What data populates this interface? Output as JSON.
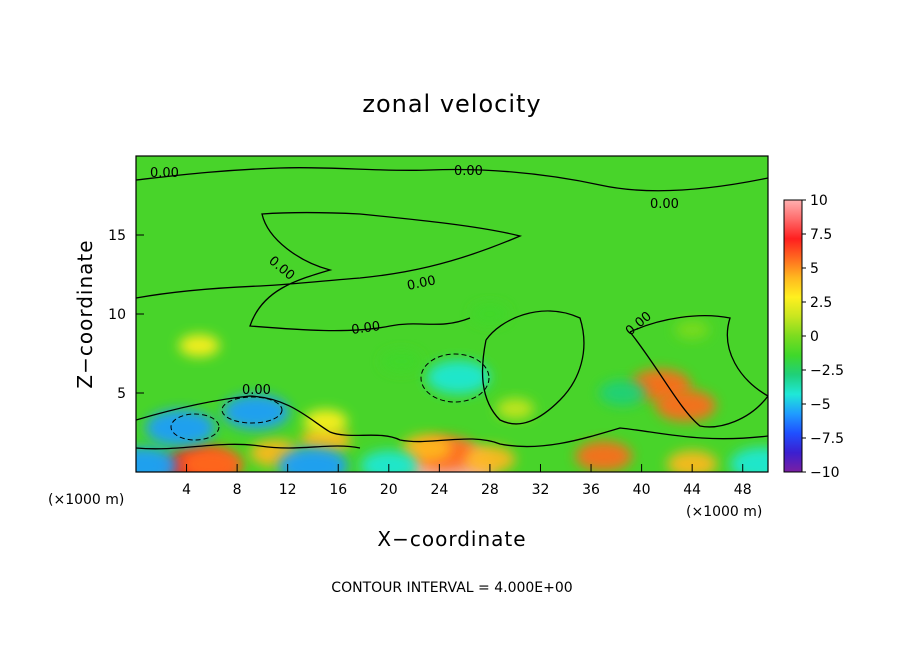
{
  "chart_data": {
    "type": "heatmap",
    "title": "zonal velocity",
    "xlabel": "X−coordinate",
    "ylabel": "Z−coordinate",
    "x_unit": "(×1000 m)",
    "footer": "CONTOUR INTERVAL = 4.000E+00",
    "xlim": [
      0,
      50
    ],
    "ylim": [
      0,
      20
    ],
    "x_ticks": [
      4,
      8,
      12,
      16,
      20,
      24,
      28,
      32,
      36,
      40,
      44,
      48
    ],
    "y_ticks": [
      5,
      10,
      15
    ],
    "colorbar": {
      "min": -10,
      "max": 10,
      "ticks": [
        "10",
        "7.5",
        "5",
        "2.5",
        "0",
        "−2.5",
        "−5",
        "−7.5",
        "−10"
      ],
      "tick_values": [
        10,
        7.5,
        5,
        2.5,
        0,
        -2.5,
        -5,
        -7.5,
        -10
      ],
      "colors": [
        "#7a1fa2",
        "#3b1fd0",
        "#1f4fff",
        "#1f9cff",
        "#1fe8d8",
        "#1fd07a",
        "#3fd82a",
        "#7cdc1f",
        "#c8e61f",
        "#fff01f",
        "#ffb81f",
        "#ff6a1f",
        "#ff1f1f",
        "#ff6a6a",
        "#ffb0b0"
      ]
    },
    "contour_labels": [
      "0.00",
      "0.00",
      "0.00",
      "0.00",
      "0.00",
      "0.00",
      "0.00",
      "0.00"
    ],
    "background_value": 0.5,
    "features": [
      {
        "x": 5,
        "y": 0.3,
        "value": 7.5
      },
      {
        "x": 6,
        "y": 0.5,
        "value": 6
      },
      {
        "x": 25,
        "y": 0.3,
        "value": 9.5
      },
      {
        "x": 24.5,
        "y": 1.2,
        "value": 6
      },
      {
        "x": 28,
        "y": 0.8,
        "value": 4
      },
      {
        "x": 23,
        "y": 1.5,
        "value": 4
      },
      {
        "x": 15,
        "y": 2,
        "value": 4
      },
      {
        "x": 11,
        "y": 1.2,
        "value": 4
      },
      {
        "x": 37,
        "y": 1,
        "value": 5
      },
      {
        "x": 44,
        "y": 0.5,
        "value": 4
      },
      {
        "x": 41.5,
        "y": 5.5,
        "value": 5.5
      },
      {
        "x": 43.5,
        "y": 4.2,
        "value": 5.5
      },
      {
        "x": 15,
        "y": 3.2,
        "value": 3
      },
      {
        "x": 0.5,
        "y": 0.4,
        "value": -6
      },
      {
        "x": 14,
        "y": 0.4,
        "value": -6
      },
      {
        "x": 3.5,
        "y": 2.8,
        "value": -6
      },
      {
        "x": 9.5,
        "y": 3.8,
        "value": -5.5
      },
      {
        "x": 25.5,
        "y": 6,
        "value": -5
      },
      {
        "x": 49.5,
        "y": 0.5,
        "value": -5
      },
      {
        "x": 20,
        "y": 0.4,
        "value": -4
      },
      {
        "x": 38.5,
        "y": 5,
        "value": -2.5
      },
      {
        "x": 28,
        "y": 10,
        "value": -1
      },
      {
        "x": 21,
        "y": 7,
        "value": -1.5
      },
      {
        "x": 44,
        "y": 9,
        "value": -0.5
      },
      {
        "x": 5,
        "y": 8,
        "value": 2.5
      },
      {
        "x": 30,
        "y": 4,
        "value": 2
      }
    ]
  }
}
